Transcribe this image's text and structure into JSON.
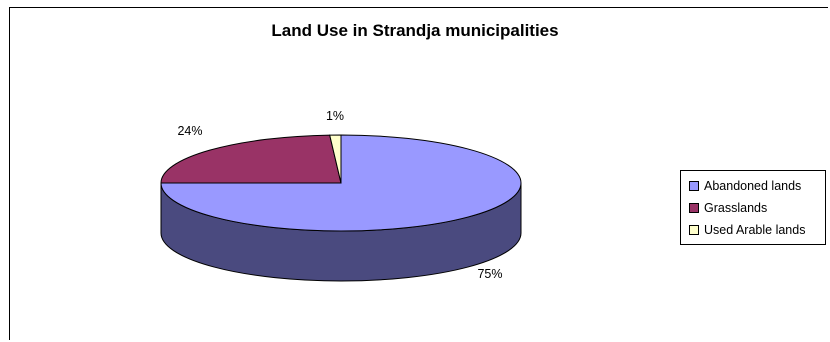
{
  "chart_data": {
    "type": "pie",
    "title": "Land Use in Strandja municipalities",
    "labels": [
      "Abandoned lands",
      "Grasslands",
      "Used Arable lands"
    ],
    "values": [
      75,
      24,
      1
    ],
    "value_labels": [
      "75%",
      "24%",
      "1%"
    ],
    "colors": [
      "#9999ff",
      "#993366",
      "#ffffcc"
    ],
    "side_colors": [
      "#4a4a7f",
      "#4c1a33",
      "#808066"
    ],
    "legend": "right",
    "style": "3d"
  }
}
